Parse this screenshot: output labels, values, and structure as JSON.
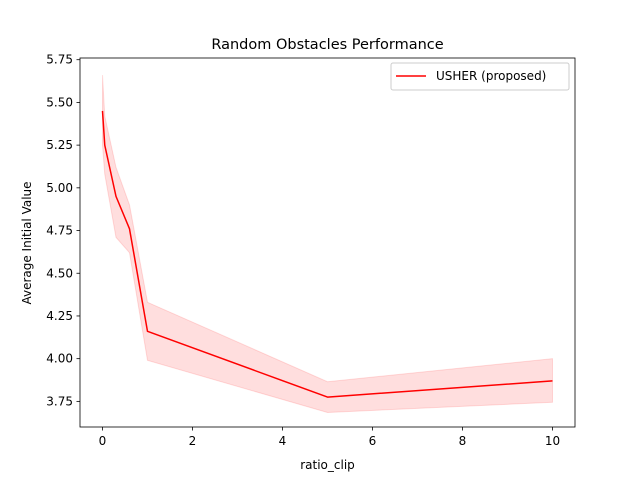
{
  "chart_data": {
    "type": "line",
    "title": "Random Obstacles Performance",
    "xlabel": "ratio_clip",
    "ylabel": "Average Initial Value",
    "xlim": [
      -0.5,
      10.5
    ],
    "ylim": [
      3.6,
      5.76
    ],
    "xticks": [
      0,
      2,
      4,
      6,
      8,
      10
    ],
    "yticks": [
      3.75,
      4.0,
      4.25,
      4.5,
      4.75,
      5.0,
      5.25,
      5.5,
      5.75
    ],
    "ytick_labels": [
      "3.75",
      "4.00",
      "4.25",
      "4.50",
      "4.75",
      "5.00",
      "5.25",
      "5.50",
      "5.75"
    ],
    "grid": false,
    "legend_position": "top-right",
    "series": [
      {
        "name": "USHER (proposed)",
        "color": "#ff0000",
        "x": [
          0,
          0.05,
          0.3,
          0.6,
          1,
          5,
          10
        ],
        "y": [
          5.45,
          5.25,
          4.95,
          4.76,
          4.16,
          3.775,
          3.87
        ],
        "y_lower": [
          5.25,
          5.08,
          4.71,
          4.62,
          3.99,
          3.685,
          3.745
        ],
        "y_upper": [
          5.66,
          5.42,
          5.12,
          4.9,
          4.33,
          3.865,
          4.0
        ]
      }
    ]
  }
}
